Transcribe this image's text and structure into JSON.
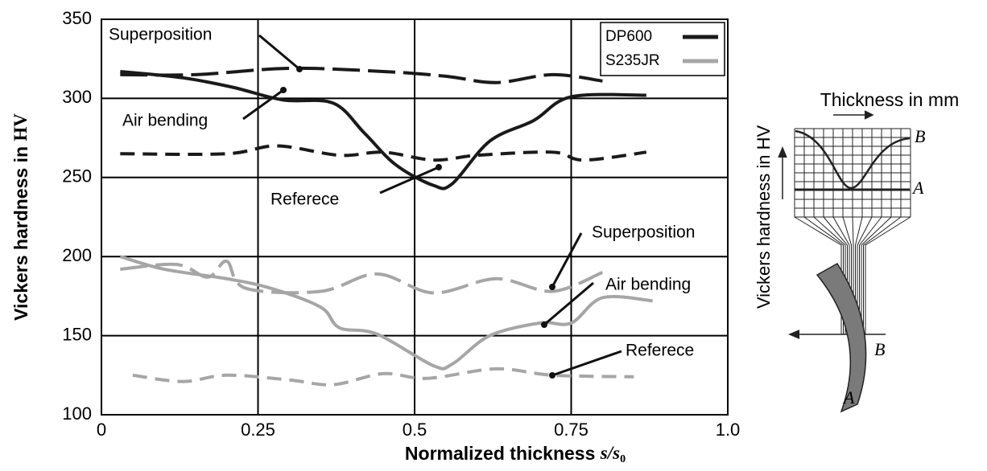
{
  "chart_data": {
    "type": "line",
    "xlabel": {
      "text": "Normalized thickness",
      "symbol": "s/s",
      "subscript": "0"
    },
    "ylabel": {
      "text": "Vickers hardness in",
      "unit": "HV"
    },
    "xlim": [
      0,
      1
    ],
    "ylim": [
      100,
      350
    ],
    "xticks": [
      0,
      0.25,
      0.5,
      0.75,
      {
        "value": 1,
        "label": "1.0"
      }
    ],
    "yticks": [
      100,
      150,
      200,
      250,
      300,
      350
    ],
    "grid": true,
    "legend": "upper right",
    "materials": [
      {
        "name": "DP600",
        "color": "#1a1a1a",
        "series": [
          {
            "name": "Superposition",
            "style": "long-dash",
            "x": [
              0.03,
              0.15,
              0.3,
              0.45,
              0.55,
              0.63,
              0.72,
              0.8
            ],
            "values": [
              315,
              315,
              319,
              317,
              314,
              310,
              315,
              311
            ]
          },
          {
            "name": "Air bending",
            "style": "solid",
            "x": [
              0.03,
              0.13,
              0.21,
              0.29,
              0.37,
              0.42,
              0.47,
              0.53,
              0.56,
              0.62,
              0.69,
              0.75,
              0.87
            ],
            "values": [
              317,
              313,
              307,
              299,
              297,
              278,
              258,
              245,
              246,
              273,
              286,
              301,
              302
            ]
          },
          {
            "name": "Referece",
            "style": "dash",
            "x": [
              0.03,
              0.2,
              0.28,
              0.38,
              0.45,
              0.53,
              0.6,
              0.72,
              0.77,
              0.87
            ],
            "values": [
              265,
              265,
              270,
              264,
              266,
              261,
              264,
              266,
              261,
              266
            ]
          }
        ]
      },
      {
        "name": "S235JR",
        "color": "#a6a6a6",
        "series": [
          {
            "name": "Superposition",
            "style": "long-dash",
            "x": [
              0.03,
              0.12,
              0.17,
              0.2,
              0.23,
              0.35,
              0.44,
              0.53,
              0.63,
              0.72,
              0.8
            ],
            "values": [
              192,
              195,
              187,
              197,
              180,
              178,
              189,
              177,
              186,
              178,
              190
            ]
          },
          {
            "name": "Air bending",
            "style": "solid",
            "x": [
              0.03,
              0.1,
              0.2,
              0.27,
              0.35,
              0.38,
              0.44,
              0.53,
              0.56,
              0.62,
              0.7,
              0.75,
              0.8,
              0.88
            ],
            "values": [
              200,
              192,
              186,
              180,
              168,
              155,
              151,
              131,
              132,
              150,
              158,
              158,
              174,
              172
            ]
          },
          {
            "name": "Referece",
            "style": "dash",
            "x": [
              0.05,
              0.13,
              0.2,
              0.3,
              0.37,
              0.45,
              0.52,
              0.63,
              0.72,
              0.85
            ],
            "values": [
              125,
              121,
              125,
              122,
              119,
              126,
              123,
              129,
              125,
              124
            ]
          }
        ]
      }
    ]
  },
  "diagram": {
    "ylabel": "Vickers hardness in HV",
    "xlabel": "Thickness in mm",
    "labels": [
      "B",
      "A",
      "B",
      "A"
    ]
  }
}
